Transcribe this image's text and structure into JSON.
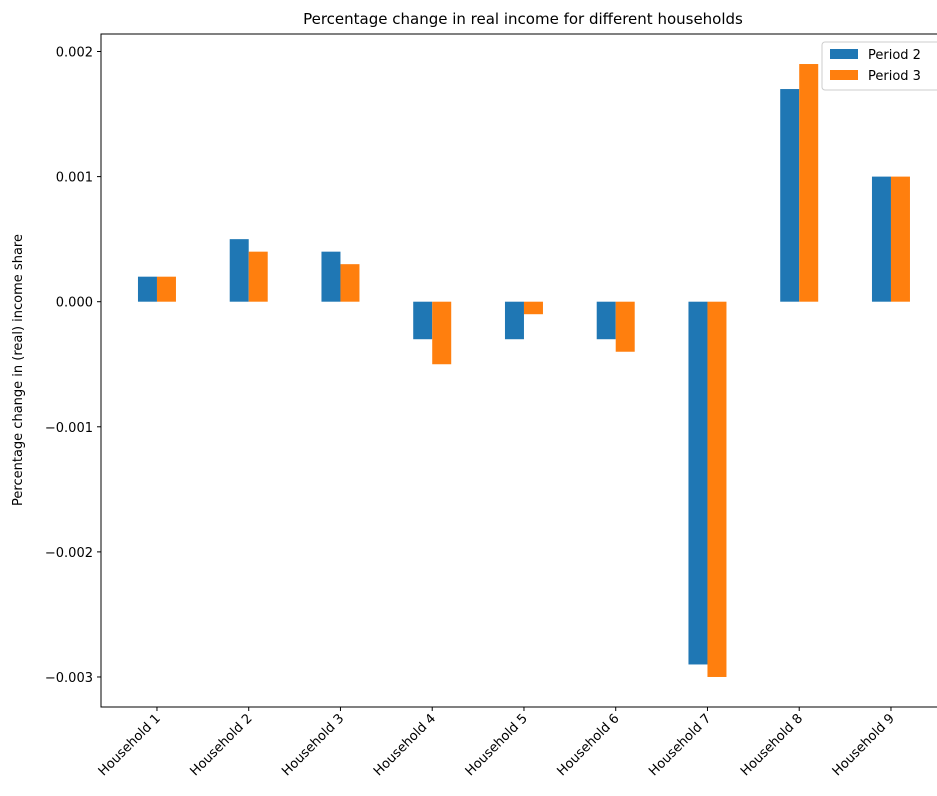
{
  "chart_data": {
    "type": "bar",
    "title": "Percentage change in real income for different households",
    "y_label": "Percentage change in (real) income share",
    "categories": [
      "Household 1",
      "Household 2",
      "Household 3",
      "Household 4",
      "Household 5",
      "Household 6",
      "Household 7",
      "Household 8",
      "Household 9"
    ],
    "series": [
      {
        "name": "Period 2",
        "color": "#1f77b4",
        "values": [
          0.0002,
          0.0005,
          0.0004,
          -0.0003,
          -0.0003,
          -0.0003,
          -0.0029,
          0.0017,
          0.001
        ]
      },
      {
        "name": "Period 3",
        "color": "#ff7f0e",
        "values": [
          0.0002,
          0.0004,
          0.0003,
          -0.0005,
          -0.0001,
          -0.0004,
          -0.003,
          0.0019,
          0.001
        ]
      }
    ],
    "ylim": [
      -0.00324,
      0.00214
    ],
    "yticks": [
      {
        "value": -0.003,
        "label": "−0.003"
      },
      {
        "value": -0.002,
        "label": "−0.002"
      },
      {
        "value": -0.001,
        "label": "−0.001"
      },
      {
        "value": 0,
        "label": "0.000"
      },
      {
        "value": 0.001,
        "label": "0.001"
      },
      {
        "value": 0.002,
        "label": "0.002"
      }
    ],
    "legend": "upper right"
  }
}
